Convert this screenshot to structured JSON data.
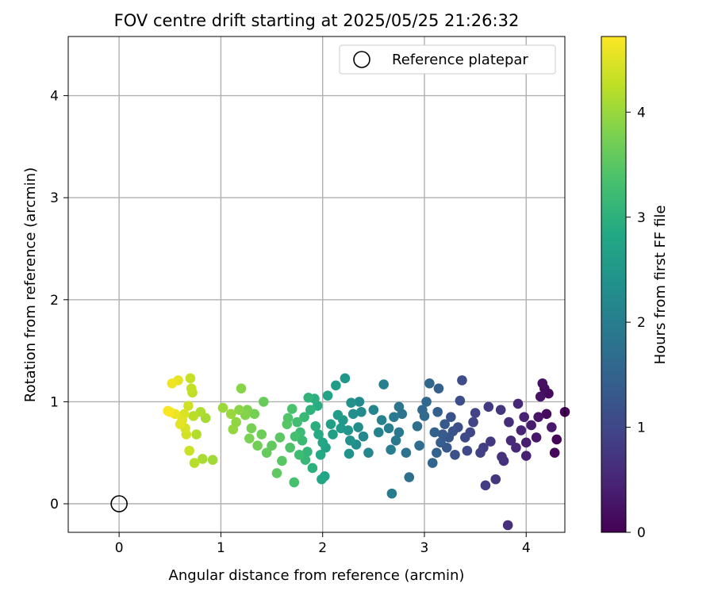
{
  "chart_data": {
    "type": "scatter",
    "title": "FOV centre drift starting at 2025/05/25 21:26:32",
    "xlabel": "Angular distance from reference (arcmin)",
    "ylabel": "Rotation from reference (arcmin)",
    "xlim": [
      -0.5,
      4.38
    ],
    "ylim": [
      -0.28,
      4.58
    ],
    "xticks": [
      0,
      1,
      2,
      3,
      4
    ],
    "yticks": [
      0,
      1,
      2,
      3,
      4
    ],
    "grid": true,
    "legend": {
      "placement": "top-right",
      "entries": [
        "Reference platepar"
      ]
    },
    "reference": {
      "x": 0,
      "y": 0,
      "label": "Reference platepar"
    },
    "colorbar": {
      "label": "Hours from first FF file",
      "colormap": "viridis",
      "range": [
        0,
        4.72
      ],
      "ticks": [
        0,
        1,
        2,
        3,
        4
      ]
    },
    "series": [
      {
        "points": [
          [
            4.38,
            0.9,
            0.03
          ],
          [
            4.3,
            0.63,
            0.06
          ],
          [
            4.28,
            0.5,
            0.09
          ],
          [
            4.22,
            1.08,
            0.12
          ],
          [
            4.2,
            0.88,
            0.15
          ],
          [
            4.18,
            1.13,
            0.18
          ],
          [
            4.16,
            1.18,
            0.21
          ],
          [
            4.14,
            1.05,
            0.24
          ],
          [
            4.12,
            0.85,
            0.27
          ],
          [
            4.1,
            0.65,
            0.3
          ],
          [
            4.25,
            0.75,
            0.33
          ],
          [
            4.05,
            0.77,
            0.36
          ],
          [
            4.0,
            0.6,
            0.39
          ],
          [
            4.0,
            0.47,
            0.42
          ],
          [
            3.98,
            0.85,
            0.45
          ],
          [
            3.95,
            0.72,
            0.48
          ],
          [
            3.92,
            0.98,
            0.51
          ],
          [
            3.9,
            0.55,
            0.54
          ],
          [
            3.85,
            0.62,
            0.57
          ],
          [
            3.83,
            0.8,
            0.6
          ],
          [
            3.82,
            -0.21,
            0.63
          ],
          [
            3.78,
            0.42,
            0.66
          ],
          [
            3.76,
            0.46,
            0.69
          ],
          [
            3.75,
            0.92,
            0.72
          ],
          [
            3.7,
            0.24,
            0.75
          ],
          [
            3.65,
            0.61,
            0.78
          ],
          [
            3.63,
            0.95,
            0.81
          ],
          [
            3.6,
            0.18,
            0.84
          ],
          [
            3.58,
            0.55,
            0.87
          ],
          [
            3.55,
            0.5,
            0.9
          ],
          [
            3.5,
            0.89,
            0.93
          ],
          [
            3.48,
            0.8,
            0.96
          ],
          [
            3.45,
            0.7,
            0.99
          ],
          [
            3.42,
            0.52,
            1.02
          ],
          [
            3.4,
            0.65,
            1.05
          ],
          [
            3.37,
            1.21,
            1.08
          ],
          [
            3.35,
            1.01,
            1.11
          ],
          [
            3.33,
            0.75,
            1.14
          ],
          [
            3.3,
            0.48,
            1.17
          ],
          [
            3.28,
            0.71,
            1.2
          ],
          [
            3.26,
            0.85,
            1.23
          ],
          [
            3.24,
            0.65,
            1.26
          ],
          [
            3.22,
            0.55,
            1.29
          ],
          [
            3.2,
            0.78,
            1.32
          ],
          [
            3.18,
            0.68,
            1.35
          ],
          [
            3.16,
            0.6,
            1.38
          ],
          [
            3.14,
            1.13,
            1.41
          ],
          [
            3.13,
            0.9,
            1.44
          ],
          [
            3.12,
            0.5,
            1.47
          ],
          [
            3.1,
            0.7,
            1.5
          ],
          [
            3.08,
            0.4,
            1.53
          ],
          [
            3.05,
            1.18,
            1.56
          ],
          [
            3.02,
            1.0,
            1.59
          ],
          [
            3.0,
            0.86,
            1.62
          ],
          [
            2.98,
            0.92,
            1.65
          ],
          [
            2.95,
            0.57,
            1.68
          ],
          [
            2.93,
            0.76,
            1.71
          ],
          [
            2.85,
            0.26,
            1.74
          ],
          [
            2.82,
            0.5,
            1.77
          ],
          [
            2.78,
            0.88,
            1.8
          ],
          [
            2.75,
            0.95,
            1.83
          ],
          [
            2.75,
            0.7,
            1.86
          ],
          [
            2.72,
            0.62,
            1.89
          ],
          [
            2.7,
            0.85,
            1.92
          ],
          [
            2.68,
            0.1,
            1.95
          ],
          [
            2.67,
            0.53,
            1.98
          ],
          [
            2.65,
            0.74,
            2.01
          ],
          [
            2.6,
            1.17,
            2.04
          ],
          [
            2.58,
            0.82,
            2.07
          ],
          [
            2.55,
            0.7,
            2.1
          ],
          [
            2.5,
            0.92,
            2.13
          ],
          [
            2.45,
            0.5,
            2.16
          ],
          [
            2.4,
            0.66,
            2.19
          ],
          [
            2.38,
            0.9,
            2.22
          ],
          [
            2.36,
            1.0,
            2.25
          ],
          [
            2.35,
            0.75,
            2.28
          ],
          [
            2.33,
            0.58,
            2.31
          ],
          [
            2.3,
            0.88,
            2.34
          ],
          [
            2.28,
            0.99,
            2.37
          ],
          [
            2.27,
            0.62,
            2.4
          ],
          [
            2.26,
            0.49,
            2.43
          ],
          [
            2.25,
            0.72,
            2.46
          ],
          [
            2.22,
            1.23,
            2.49
          ],
          [
            2.2,
            0.82,
            2.52
          ],
          [
            2.18,
            0.74,
            2.55
          ],
          [
            2.15,
            0.87,
            2.58
          ],
          [
            2.13,
            1.16,
            2.61
          ],
          [
            2.1,
            0.68,
            2.64
          ],
          [
            2.08,
            0.78,
            2.67
          ],
          [
            2.05,
            1.06,
            2.7
          ],
          [
            2.03,
            0.55,
            2.73
          ],
          [
            2.02,
            0.27,
            2.76
          ],
          [
            2.0,
            0.6,
            2.79
          ],
          [
            1.99,
            0.24,
            2.82
          ],
          [
            1.98,
            0.48,
            2.85
          ],
          [
            1.96,
            0.68,
            2.88
          ],
          [
            1.95,
            0.96,
            2.91
          ],
          [
            1.93,
            0.76,
            2.94
          ],
          [
            1.92,
            1.03,
            2.97
          ],
          [
            1.9,
            0.35,
            3.0
          ],
          [
            1.88,
            0.92,
            3.03
          ],
          [
            1.86,
            1.04,
            3.06
          ],
          [
            1.85,
            0.51,
            3.09
          ],
          [
            1.83,
            0.43,
            3.12
          ],
          [
            1.82,
            0.85,
            3.15
          ],
          [
            1.8,
            0.62,
            3.18
          ],
          [
            1.78,
            0.7,
            3.21
          ],
          [
            1.77,
            0.48,
            3.24
          ],
          [
            1.75,
            0.8,
            3.27
          ],
          [
            1.73,
            0.66,
            3.3
          ],
          [
            1.72,
            0.21,
            3.33
          ],
          [
            1.7,
            0.93,
            3.36
          ],
          [
            1.68,
            0.55,
            3.39
          ],
          [
            1.66,
            0.84,
            3.42
          ],
          [
            1.65,
            0.78,
            3.45
          ],
          [
            1.6,
            0.42,
            3.48
          ],
          [
            1.58,
            0.65,
            3.51
          ],
          [
            1.55,
            0.3,
            3.54
          ],
          [
            1.5,
            0.57,
            3.57
          ],
          [
            1.45,
            0.5,
            3.6
          ],
          [
            1.42,
            1.0,
            3.63
          ],
          [
            1.4,
            0.68,
            3.66
          ],
          [
            1.36,
            0.57,
            3.69
          ],
          [
            1.33,
            0.88,
            3.72
          ],
          [
            1.3,
            0.74,
            3.75
          ],
          [
            1.28,
            0.64,
            3.78
          ],
          [
            1.26,
            0.92,
            3.81
          ],
          [
            1.24,
            0.87,
            3.84
          ],
          [
            1.2,
            1.13,
            3.87
          ],
          [
            1.18,
            0.92,
            3.9
          ],
          [
            1.15,
            0.8,
            3.93
          ],
          [
            1.12,
            0.73,
            3.96
          ],
          [
            1.1,
            0.88,
            3.99
          ],
          [
            1.02,
            0.94,
            4.02
          ],
          [
            0.92,
            0.43,
            4.05
          ],
          [
            0.85,
            0.84,
            4.08
          ],
          [
            0.82,
            0.44,
            4.11
          ],
          [
            0.8,
            0.9,
            4.14
          ],
          [
            0.76,
            0.68,
            4.17
          ],
          [
            0.74,
            0.4,
            4.2
          ],
          [
            0.73,
            0.86,
            4.23
          ],
          [
            0.72,
            1.09,
            4.26
          ],
          [
            0.71,
            1.13,
            4.29
          ],
          [
            0.7,
            1.23,
            4.32
          ],
          [
            0.69,
            0.52,
            4.35
          ],
          [
            0.68,
            0.96,
            4.38
          ],
          [
            0.66,
            0.68,
            4.41
          ],
          [
            0.65,
            0.74,
            4.44
          ],
          [
            0.64,
            0.88,
            4.47
          ],
          [
            0.62,
            0.82,
            4.5
          ],
          [
            0.6,
            0.78,
            4.53
          ],
          [
            0.58,
            1.21,
            4.56
          ],
          [
            0.55,
            0.88,
            4.59
          ],
          [
            0.52,
            1.18,
            4.62
          ],
          [
            0.5,
            0.9,
            4.65
          ],
          [
            0.48,
            0.91,
            4.68
          ]
        ]
      }
    ]
  }
}
